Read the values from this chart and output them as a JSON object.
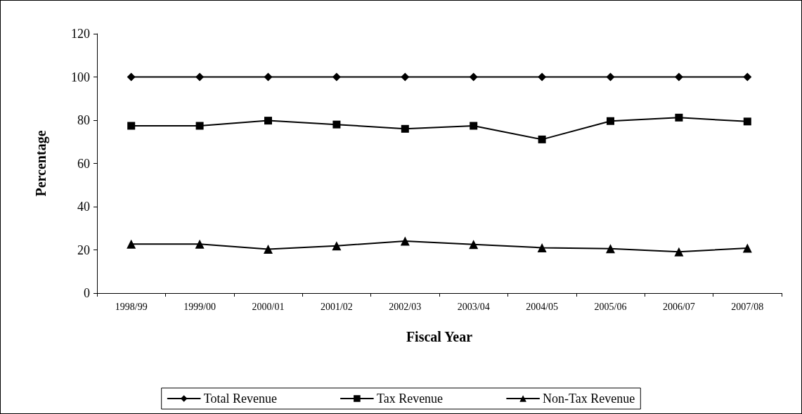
{
  "chart_data": {
    "type": "line",
    "xlabel": "Fiscal Year",
    "ylabel": "Percentage",
    "categories": [
      "1998/99",
      "1999/00",
      "2000/01",
      "2001/02",
      "2002/03",
      "2003/04",
      "2004/05",
      "2005/06",
      "2006/07",
      "2007/08"
    ],
    "series": [
      {
        "name": "Total Revenue",
        "color": "#000000",
        "marker": "diamond",
        "values": [
          100,
          100,
          100,
          100,
          100,
          100,
          100,
          100,
          100,
          100
        ]
      },
      {
        "name": "Tax Revenue",
        "color": "#000000",
        "marker": "square",
        "values": [
          77.4,
          77.4,
          79.8,
          78.0,
          76.0,
          77.4,
          71.1,
          79.6,
          81.2,
          79.4
        ]
      },
      {
        "name": "Non-Tax Revenue",
        "color": "#000000",
        "marker": "triangle",
        "values": [
          22.7,
          22.7,
          20.3,
          21.9,
          24.1,
          22.5,
          21.0,
          20.6,
          19.1,
          20.8
        ]
      }
    ],
    "ylim": [
      0,
      120
    ],
    "yticks": [
      0,
      20,
      40,
      60,
      80,
      100,
      120
    ],
    "grid": false,
    "legend": "bottom",
    "line_style": "solid"
  }
}
